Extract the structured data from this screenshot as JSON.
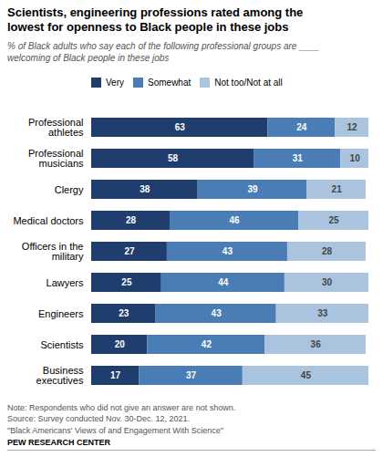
{
  "chart_data": {
    "type": "bar",
    "orientation": "horizontal",
    "stacked": true,
    "title": "Scientists, engineering professions rated among the\nlowest for openness to Black people in these jobs",
    "subtitle": "% of Black adults who say each of the following professional groups are ____\nwelcoming of Black people in these jobs",
    "note": "Note: Respondents who did not give an answer are not shown.\nSource: Survey conducted Nov. 30-Dec. 12, 2021.\n\"Black Americans' Views of and Engagement With Science\"",
    "source": "PEW RESEARCH CENTER",
    "categories": [
      "Professional\nathletes",
      "Professional\nmusicians",
      "Clergy",
      "Medical doctors",
      "Officers in the\nmilitary",
      "Lawyers",
      "Engineers",
      "Scientists",
      "Business\nexecutives"
    ],
    "series": [
      {
        "name": "Very",
        "color": "#1f3e6e",
        "values": [
          63,
          58,
          38,
          28,
          27,
          25,
          23,
          20,
          17
        ]
      },
      {
        "name": "Somewhat",
        "color": "#4a7db5",
        "values": [
          24,
          31,
          39,
          46,
          43,
          44,
          43,
          42,
          37
        ]
      },
      {
        "name": "Not too/Not at all",
        "color": "#aac4e0",
        "values": [
          12,
          10,
          21,
          25,
          28,
          30,
          33,
          36,
          45
        ]
      }
    ],
    "xlim": [
      0,
      99
    ],
    "data_labels": true,
    "tick_labels": "y",
    "legend": "top",
    "grid": false
  }
}
